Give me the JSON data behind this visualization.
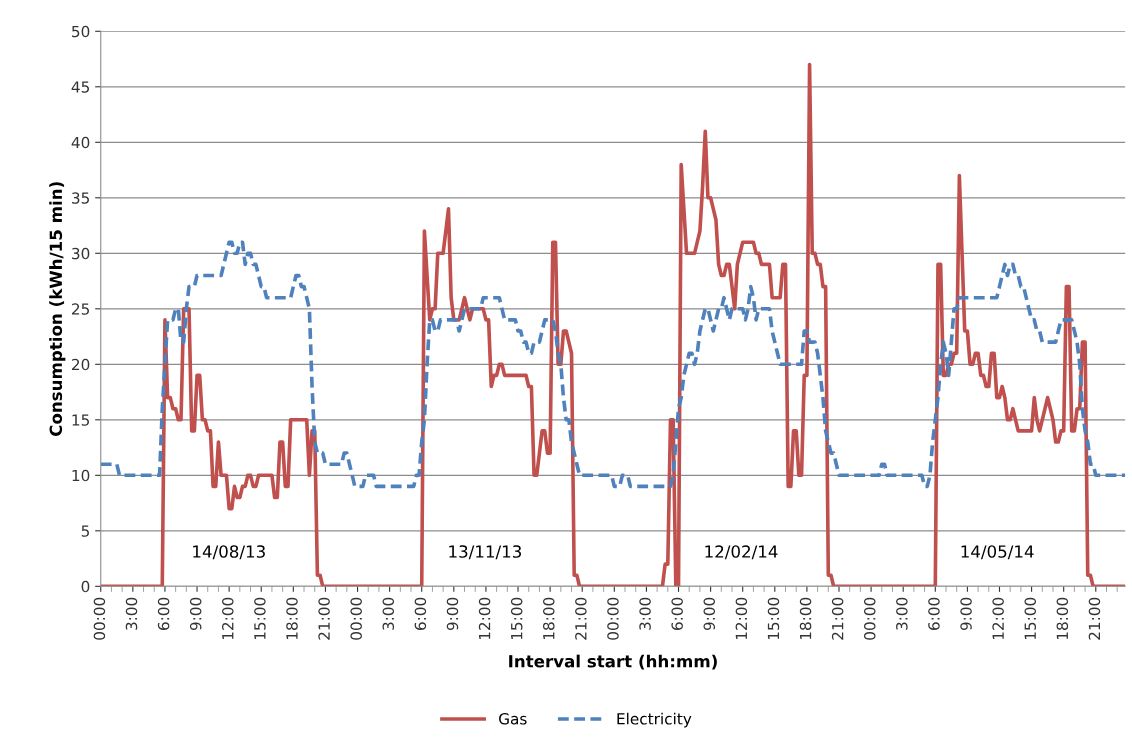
{
  "chart_data": {
    "type": "line",
    "xlabel": "Interval start (hh:mm)",
    "ylabel": "Consumption (kWh/15 min)",
    "ylim": [
      0,
      50
    ],
    "yticks": [
      0,
      5,
      10,
      15,
      20,
      25,
      30,
      35,
      40,
      45,
      50
    ],
    "categories": [
      "00:00",
      null,
      null,
      null,
      null,
      null,
      null,
      null,
      null,
      null,
      null,
      null,
      "3:00",
      null,
      null,
      null,
      null,
      null,
      null,
      null,
      null,
      null,
      null,
      null,
      "6:00",
      null,
      null,
      null,
      null,
      null,
      null,
      null,
      null,
      null,
      null,
      null,
      "9:00",
      null,
      null,
      null,
      null,
      null,
      null,
      null,
      null,
      null,
      null,
      null,
      "12:00",
      null,
      null,
      null,
      null,
      null,
      null,
      null,
      null,
      null,
      null,
      null,
      "15:00",
      null,
      null,
      null,
      null,
      null,
      null,
      null,
      null,
      null,
      null,
      null,
      "18:00",
      null,
      null,
      null,
      null,
      null,
      null,
      null,
      null,
      null,
      null,
      null,
      "21:00",
      null,
      null,
      null,
      null,
      null,
      null,
      null,
      null,
      null,
      null,
      null,
      "00:00",
      null,
      null,
      null,
      null,
      null,
      null,
      null,
      null,
      null,
      null,
      null,
      "3:00",
      null,
      null,
      null,
      null,
      null,
      null,
      null,
      null,
      null,
      null,
      null,
      "6:00",
      null,
      null,
      null,
      null,
      null,
      null,
      null,
      null,
      null,
      null,
      null,
      "9:00",
      null,
      null,
      null,
      null,
      null,
      null,
      null,
      null,
      null,
      null,
      null,
      "12:00",
      null,
      null,
      null,
      null,
      null,
      null,
      null,
      null,
      null,
      null,
      null,
      "15:00",
      null,
      null,
      null,
      null,
      null,
      null,
      null,
      null,
      null,
      null,
      null,
      "18:00",
      null,
      null,
      null,
      null,
      null,
      null,
      null,
      null,
      null,
      null,
      null,
      "21:00",
      null,
      null,
      null,
      null,
      null,
      null,
      null,
      null,
      null,
      null,
      null,
      "00:00",
      null,
      null,
      null,
      null,
      null,
      null,
      null,
      null,
      null,
      null,
      null,
      "3:00",
      null,
      null,
      null,
      null,
      null,
      null,
      null,
      null,
      null,
      null,
      null,
      "6:00",
      null,
      null,
      null,
      null,
      null,
      null,
      null,
      null,
      null,
      null,
      null,
      "9:00",
      null,
      null,
      null,
      null,
      null,
      null,
      null,
      null,
      null,
      null,
      null,
      "12:00",
      null,
      null,
      null,
      null,
      null,
      null,
      null,
      null,
      null,
      null,
      null,
      "15:00",
      null,
      null,
      null,
      null,
      null,
      null,
      null,
      null,
      null,
      null,
      null,
      "18:00",
      null,
      null,
      null,
      null,
      null,
      null,
      null,
      null,
      null,
      null,
      null,
      "21:00",
      null,
      null,
      null,
      null,
      null,
      null,
      null,
      null,
      null,
      null,
      null,
      "00:00",
      null,
      null,
      null,
      null,
      null,
      null,
      null,
      null,
      null,
      null,
      null,
      "3:00",
      null,
      null,
      null,
      null,
      null,
      null,
      null,
      null,
      null,
      null,
      null,
      "6:00",
      null,
      null,
      null,
      null,
      null,
      null,
      null,
      null,
      null,
      null,
      null,
      "9:00",
      null,
      null,
      null,
      null,
      null,
      null,
      null,
      null,
      null,
      null,
      null,
      "12:00",
      null,
      null,
      null,
      null,
      null,
      null,
      null,
      null,
      null,
      null,
      null,
      "15:00",
      null,
      null,
      null,
      null,
      null,
      null,
      null,
      null,
      null,
      null,
      null,
      "18:00",
      null,
      null,
      null,
      null,
      null,
      null,
      null,
      null,
      null,
      null,
      null,
      "21:00",
      null,
      null,
      null,
      null,
      null,
      null,
      null,
      null,
      null,
      null,
      null
    ],
    "grid": "y",
    "legend": "bottom",
    "marker": "none",
    "series": [
      {
        "name": "Gas",
        "color": "#c0504d",
        "line_style": "solid",
        "values": [
          0,
          0,
          0,
          0,
          0,
          0,
          0,
          0,
          0,
          0,
          0,
          0,
          0,
          0,
          0,
          0,
          0,
          0,
          0,
          0,
          0,
          0,
          0,
          0,
          24,
          17,
          17,
          16,
          16,
          15,
          15,
          25,
          25,
          25,
          14,
          14,
          19,
          19,
          15,
          15,
          14,
          14,
          9,
          9,
          13,
          10,
          10,
          10,
          7,
          7,
          9,
          8,
          8,
          9,
          9,
          10,
          10,
          9,
          9,
          10,
          10,
          10,
          10,
          10,
          10,
          8,
          8,
          13,
          13,
          9,
          9,
          15,
          15,
          15,
          15,
          15,
          15,
          15,
          10,
          14,
          14,
          1,
          1,
          0,
          0,
          0,
          0,
          0,
          0,
          0,
          0,
          0,
          0,
          0,
          0,
          0,
          0,
          0,
          0,
          0,
          0,
          0,
          0,
          0,
          0,
          0,
          0,
          0,
          0,
          0,
          0,
          0,
          0,
          0,
          0,
          0,
          0,
          0,
          0,
          0,
          0,
          32,
          28,
          24,
          25,
          25,
          30,
          30,
          30,
          32,
          34,
          26,
          24,
          24,
          24,
          25,
          26,
          25,
          24,
          25,
          25,
          25,
          25,
          25,
          24,
          24,
          18,
          19,
          19,
          20,
          20,
          19,
          19,
          19,
          19,
          19,
          19,
          19,
          19,
          19,
          18,
          18,
          10,
          10,
          12,
          14,
          14,
          12,
          12,
          31,
          31,
          20,
          20,
          23,
          23,
          22,
          21,
          1,
          1,
          0,
          0,
          0,
          0,
          0,
          0,
          0,
          0,
          0,
          0,
          0,
          0,
          0,
          0,
          0,
          0,
          0,
          0,
          0,
          0,
          0,
          0,
          0,
          0,
          0,
          0,
          0,
          0,
          0,
          0,
          0,
          0,
          2,
          2,
          15,
          15,
          0,
          0,
          38,
          34,
          30,
          30,
          30,
          30,
          31,
          32,
          36,
          41,
          35,
          35,
          34,
          33,
          29,
          28,
          28,
          29,
          29,
          27,
          25,
          29,
          30,
          31,
          31,
          31,
          31,
          31,
          30,
          30,
          29,
          29,
          29,
          29,
          26,
          26,
          26,
          26,
          29,
          29,
          9,
          9,
          14,
          14,
          10,
          10,
          19,
          19,
          47,
          30,
          30,
          29,
          29,
          27,
          27,
          1,
          1,
          0,
          0,
          0,
          0,
          0,
          0,
          0,
          0,
          0,
          0,
          0,
          0,
          0,
          0,
          0,
          0,
          0,
          0,
          0,
          0,
          0,
          0,
          0,
          0,
          0,
          0,
          0,
          0,
          0,
          0,
          0,
          0,
          0,
          0,
          0,
          0,
          0,
          0,
          0,
          29,
          29,
          19,
          19,
          20,
          20,
          21,
          21,
          37,
          30,
          23,
          23,
          20,
          20,
          21,
          21,
          19,
          19,
          18,
          18,
          21,
          21,
          17,
          17,
          18,
          17,
          15,
          15,
          16,
          15,
          14,
          14,
          14,
          14,
          14,
          14,
          17,
          15,
          14,
          15,
          16,
          17,
          16,
          15,
          13,
          13,
          14,
          14,
          27,
          27,
          14,
          14,
          16,
          16,
          22,
          22,
          1,
          1,
          0,
          0,
          0,
          0,
          0,
          0,
          0,
          0,
          0,
          0,
          0,
          0,
          0
        ]
      },
      {
        "name": "Electricity",
        "color": "#4f81bd",
        "line_style": "dashed",
        "values": [
          11,
          11,
          11,
          11,
          11,
          11,
          11,
          10,
          10,
          10,
          10,
          10,
          10,
          10,
          10,
          10,
          10,
          10,
          10,
          10,
          10,
          10,
          10,
          16,
          20,
          24,
          24,
          24,
          25,
          25,
          22,
          22,
          25,
          27,
          27,
          27,
          28,
          28,
          28,
          28,
          28,
          28,
          28,
          28,
          28,
          28,
          29,
          30,
          31,
          31,
          30,
          30,
          31,
          31,
          29,
          30,
          30,
          29,
          29,
          28,
          27,
          27,
          26,
          26,
          26,
          26,
          26,
          26,
          26,
          26,
          26,
          26,
          27,
          28,
          28,
          27,
          27,
          26,
          25,
          18,
          13,
          12,
          12,
          12,
          11,
          11,
          11,
          11,
          11,
          11,
          11,
          12,
          12,
          11,
          10,
          9,
          9,
          9,
          9,
          10,
          10,
          10,
          10,
          9,
          9,
          9,
          9,
          9,
          9,
          9,
          9,
          9,
          9,
          9,
          9,
          9,
          9,
          9,
          10,
          10,
          13,
          15,
          20,
          24,
          24,
          23,
          23,
          24,
          24,
          24,
          24,
          24,
          24,
          24,
          23,
          24,
          25,
          25,
          25,
          25,
          25,
          25,
          25,
          26,
          26,
          26,
          26,
          26,
          26,
          26,
          25,
          24,
          24,
          24,
          24,
          24,
          23,
          23,
          22,
          22,
          21,
          21,
          22,
          22,
          22,
          23,
          24,
          24,
          24,
          24,
          23,
          21,
          20,
          17,
          15,
          15,
          13,
          12,
          11,
          10,
          10,
          10,
          10,
          10,
          10,
          10,
          10,
          10,
          10,
          10,
          10,
          10,
          9,
          9,
          9,
          10,
          10,
          10,
          9,
          9,
          9,
          9,
          9,
          9,
          9,
          9,
          9,
          9,
          9,
          9,
          9,
          9,
          9,
          9,
          10,
          13,
          16,
          17,
          19,
          20,
          21,
          21,
          20,
          21,
          23,
          24,
          25,
          25,
          24,
          23,
          24,
          25,
          25,
          26,
          25,
          24,
          25,
          25,
          25,
          25,
          25,
          24,
          25,
          27,
          26,
          24,
          25,
          25,
          25,
          25,
          25,
          23,
          22,
          21,
          20,
          20,
          20,
          20,
          20,
          20,
          20,
          20,
          20,
          23,
          23,
          22,
          22,
          22,
          21,
          19,
          17,
          14,
          13,
          12,
          12,
          11,
          10,
          10,
          10,
          10,
          10,
          10,
          10,
          10,
          10,
          10,
          10,
          10,
          10,
          10,
          10,
          10,
          11,
          11,
          10,
          10,
          10,
          10,
          10,
          10,
          10,
          10,
          10,
          10,
          10,
          10,
          10,
          10,
          9,
          9,
          10,
          13,
          15,
          17,
          20,
          22,
          21,
          19,
          22,
          25,
          25,
          26,
          26,
          26,
          26,
          26,
          26,
          26,
          26,
          26,
          26,
          26,
          26,
          26,
          26,
          26,
          27,
          28,
          29,
          28,
          29,
          29,
          28,
          28,
          27,
          27,
          26,
          25,
          24,
          24,
          23,
          23,
          22,
          22,
          22,
          22,
          22,
          22,
          23,
          24,
          24,
          24,
          24,
          24,
          23,
          22,
          20,
          16,
          14,
          13,
          11,
          11,
          10,
          10,
          10,
          10,
          10,
          10,
          10,
          10,
          10,
          10,
          10,
          10
        ]
      }
    ],
    "annotations": [
      "14/08/13",
      "13/11/13",
      "12/02/14",
      "14/05/14"
    ]
  }
}
